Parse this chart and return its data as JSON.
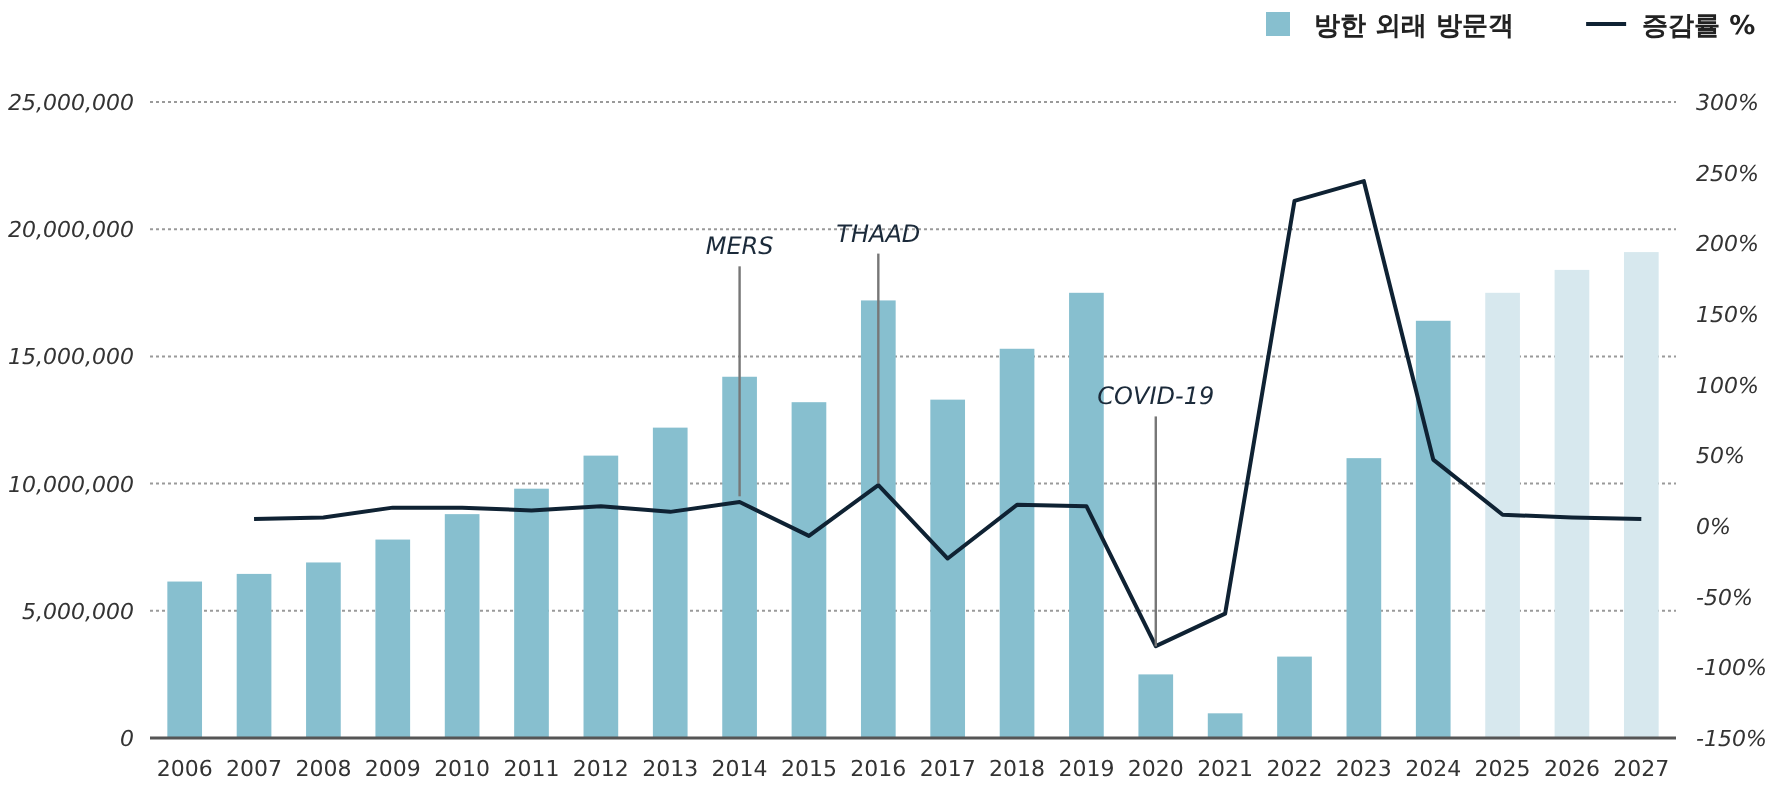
{
  "chart_data": {
    "type": "bar",
    "categories": [
      "2006",
      "2007",
      "2008",
      "2009",
      "2010",
      "2011",
      "2012",
      "2013",
      "2014",
      "2015",
      "2016",
      "2017",
      "2018",
      "2019",
      "2020",
      "2021",
      "2022",
      "2023",
      "2024",
      "2025",
      "2026",
      "2027"
    ],
    "series": [
      {
        "name": "방한 외래 방문객",
        "color": "#87bfcf",
        "colors": [
          "#87bfcf",
          "#87bfcf",
          "#87bfcf",
          "#87bfcf",
          "#87bfcf",
          "#87bfcf",
          "#87bfcf",
          "#87bfcf",
          "#87bfcf",
          "#87bfcf",
          "#87bfcf",
          "#87bfcf",
          "#87bfcf",
          "#87bfcf",
          "#87bfcf",
          "#87bfcf",
          "#87bfcf",
          "#87bfcf",
          "#87bfcf",
          "#d7e8ee",
          "#d7e8ee",
          "#d7e8ee"
        ],
        "values": [
          6150000,
          6450000,
          6900000,
          7800000,
          8800000,
          9800000,
          11100000,
          12200000,
          14200000,
          13200000,
          17200000,
          13300000,
          15300000,
          17500000,
          2500000,
          970000,
          3200000,
          11000000,
          16400000,
          17500000,
          18400000,
          19100000
        ]
      },
      {
        "name": "증감률 %",
        "type": "line",
        "axis": "y2",
        "color": "#0f2233",
        "values": [
          null,
          5,
          6,
          13,
          13,
          11,
          14,
          10,
          17,
          -7,
          29,
          -23,
          15,
          14,
          -85,
          -62,
          230,
          244,
          47,
          8,
          6,
          5
        ]
      }
    ],
    "ylim": [
      0,
      25000000
    ],
    "yticks": [
      {
        "value": 0,
        "label": "0"
      },
      {
        "value": 5000000,
        "label": "5,000,000"
      },
      {
        "value": 10000000,
        "label": "10,000,000"
      },
      {
        "value": 15000000,
        "label": "15,000,000"
      },
      {
        "value": 20000000,
        "label": "20,000,000"
      },
      {
        "value": 25000000,
        "label": "25,000,000"
      }
    ],
    "y2lim": [
      -150,
      300
    ],
    "y2ticks": [
      {
        "value": -150,
        "label": "-150%"
      },
      {
        "value": -100,
        "label": "-100%"
      },
      {
        "value": -50,
        "label": "-50%"
      },
      {
        "value": 0,
        "label": "0%"
      },
      {
        "value": 50,
        "label": "50%"
      },
      {
        "value": 100,
        "label": "100%"
      },
      {
        "value": 150,
        "label": "150%"
      },
      {
        "value": 200,
        "label": "200%"
      },
      {
        "value": 250,
        "label": "250%"
      },
      {
        "value": 300,
        "label": "300%"
      }
    ],
    "grid": "y",
    "legend": "top right",
    "annotations": [
      {
        "text": "MERS",
        "x": "2014",
        "y": 9500000
      },
      {
        "text": "THAAD",
        "x": "2016",
        "y": 10000000
      },
      {
        "text": "COVID-19",
        "x": "2020",
        "y": 3600000
      }
    ]
  }
}
